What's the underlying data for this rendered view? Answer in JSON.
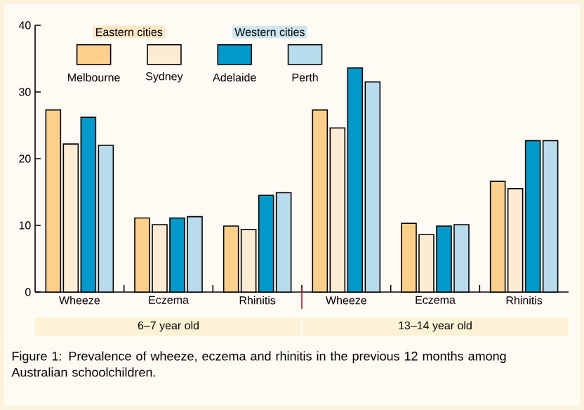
{
  "chart_data": {
    "type": "bar",
    "categories": [
      "Wheeze",
      "Eczema",
      "Rhinitis",
      "Wheeze",
      "Eczema",
      "Rhinitis"
    ],
    "series": [
      {
        "name": "Melbourne",
        "color": "#fcd08a",
        "values": [
          27.3,
          11.1,
          9.9,
          27.3,
          10.3,
          16.6
        ]
      },
      {
        "name": "Sydney",
        "color": "#fdebd3",
        "values": [
          22.2,
          10.1,
          9.4,
          24.6,
          8.6,
          15.5
        ]
      },
      {
        "name": "Adelaide",
        "color": "#0099cc",
        "values": [
          26.2,
          11.1,
          14.5,
          33.6,
          9.9,
          22.7
        ]
      },
      {
        "name": "Perth",
        "color": "#b8dcec",
        "values": [
          22.0,
          11.3,
          14.9,
          31.5,
          10.1,
          22.7
        ]
      }
    ],
    "ylim": [
      0,
      40
    ],
    "yticks": [
      0,
      10,
      20,
      30,
      40
    ],
    "grid": false,
    "legend": "top",
    "annotations": [
      "Eastern cities",
      "Western cities",
      "6–7 year old",
      "13–14 year old",
      "Figure 1: Prevalence of wheeze, eczema and rhinitis in the previous 12 months among Australian schoolchildren."
    ]
  }
}
